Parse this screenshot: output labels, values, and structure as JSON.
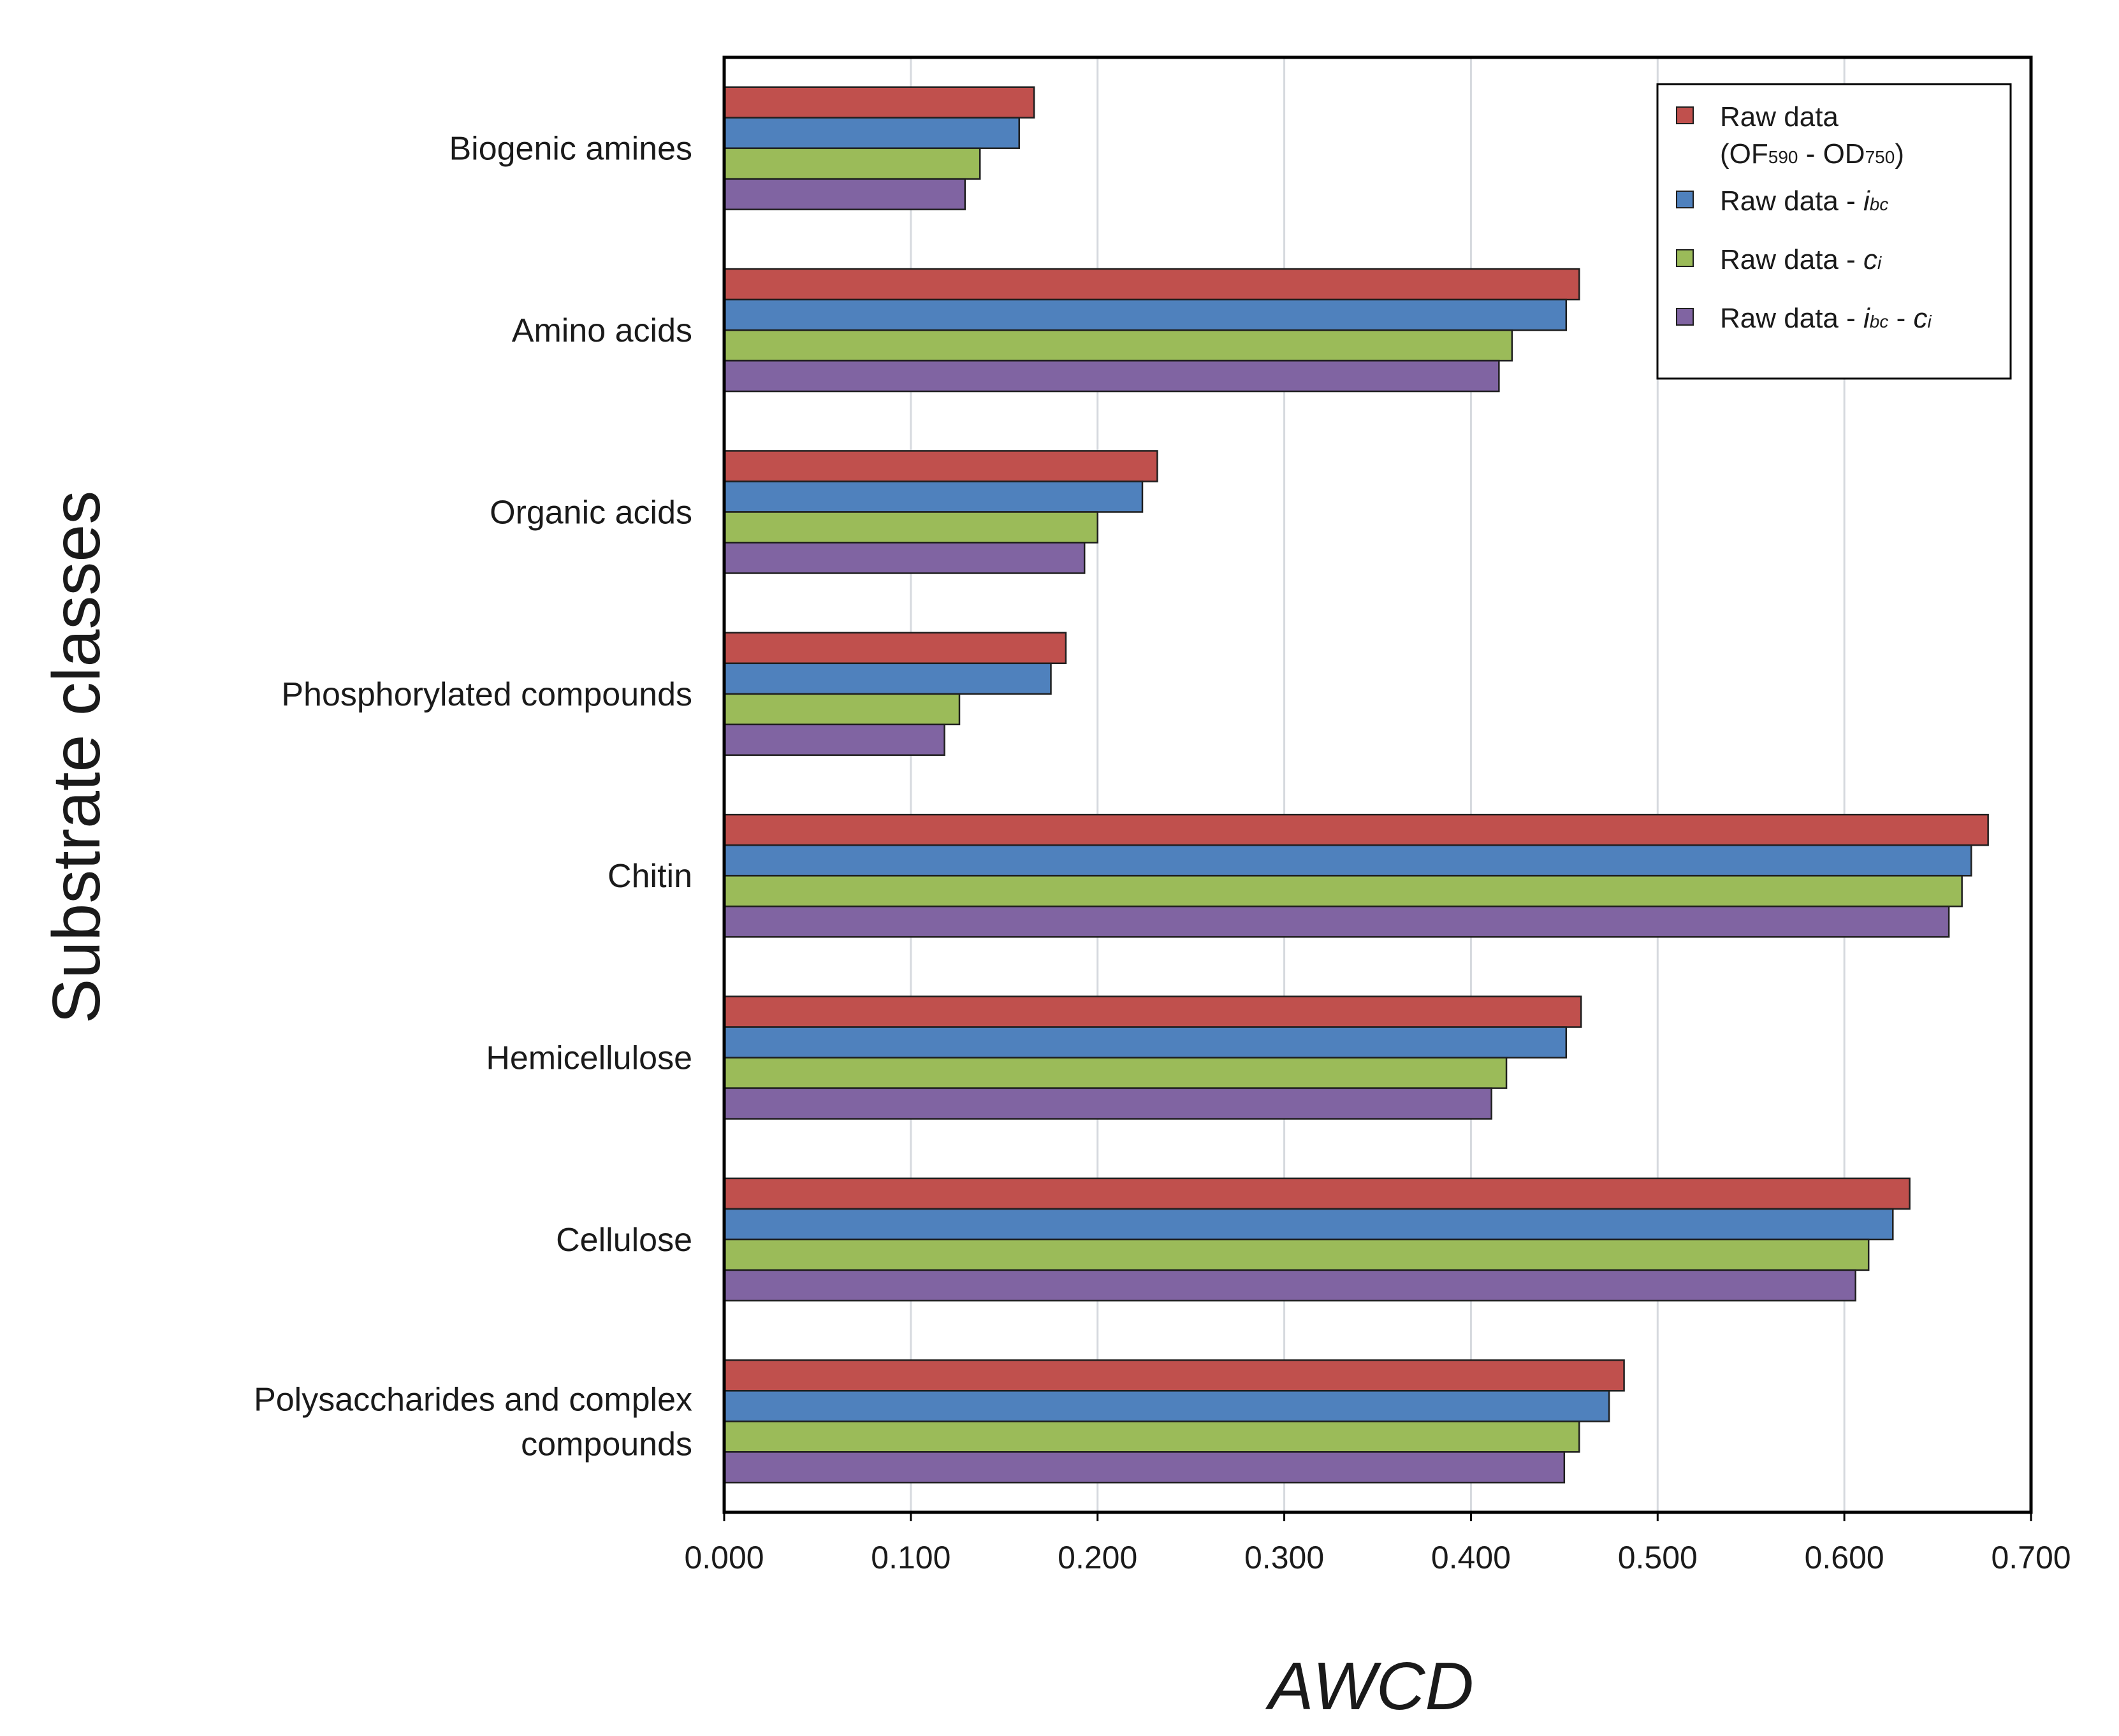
{
  "chart_data": {
    "type": "bar",
    "orientation": "horizontal",
    "xlabel": "AWCD",
    "ylabel": "Substrate classes",
    "xlim": [
      0.0,
      0.7
    ],
    "xticks": [
      "0.000",
      "0.100",
      "0.200",
      "0.300",
      "0.400",
      "0.500",
      "0.600",
      "0.700"
    ],
    "grid": "vertical",
    "legend_position": "top-right",
    "categories": [
      "Biogenic amines",
      "Amino acids",
      "Organic acids",
      "Phosphorylated compounds",
      "Chitin",
      "Hemicellulose",
      "Cellulose",
      "Polysaccharides and complex compounds"
    ],
    "category_lines": [
      [
        "Biogenic amines"
      ],
      [
        "Amino acids"
      ],
      [
        "Organic acids"
      ],
      [
        "Phosphorylated compounds"
      ],
      [
        "Chitin"
      ],
      [
        "Hemicellulose"
      ],
      [
        "Cellulose"
      ],
      [
        "Polysaccharides and complex",
        "compounds"
      ]
    ],
    "series": [
      {
        "name": "Raw data (OF590 - OD750)",
        "color": "#c0504d",
        "values": [
          0.166,
          0.458,
          0.232,
          0.183,
          0.677,
          0.459,
          0.635,
          0.482
        ]
      },
      {
        "name": "Raw data - ibc",
        "color": "#4f81bd",
        "values": [
          0.158,
          0.451,
          0.224,
          0.175,
          0.668,
          0.451,
          0.626,
          0.474
        ]
      },
      {
        "name": "Raw data - ci",
        "color": "#9bbb59",
        "values": [
          0.137,
          0.422,
          0.2,
          0.126,
          0.663,
          0.419,
          0.613,
          0.458
        ]
      },
      {
        "name": "Raw data - ibc - ci",
        "color": "#8064a2",
        "values": [
          0.129,
          0.415,
          0.193,
          0.118,
          0.656,
          0.411,
          0.606,
          0.45
        ]
      }
    ]
  },
  "legend": {
    "items": [
      {
        "parts": [
          {
            "t": "Raw data"
          }
        ],
        "line2": [
          {
            "t": "(OF"
          },
          {
            "t": "590",
            "sub": true
          },
          {
            "t": " - OD"
          },
          {
            "t": "750",
            "sub": true
          },
          {
            "t": ")"
          }
        ]
      },
      {
        "parts": [
          {
            "t": "Raw data - "
          },
          {
            "t": "i",
            "italic": true
          },
          {
            "t": "bc",
            "sub": true,
            "italic": true
          }
        ]
      },
      {
        "parts": [
          {
            "t": "Raw data - "
          },
          {
            "t": "c",
            "italic": true
          },
          {
            "t": "i",
            "sub": true,
            "italic": true
          }
        ]
      },
      {
        "parts": [
          {
            "t": "Raw data - "
          },
          {
            "t": "i",
            "italic": true
          },
          {
            "t": "bc",
            "sub": true,
            "italic": true
          },
          {
            "t": " - "
          },
          {
            "t": "c",
            "italic": true
          },
          {
            "t": "i",
            "sub": true,
            "italic": true
          }
        ]
      }
    ]
  }
}
